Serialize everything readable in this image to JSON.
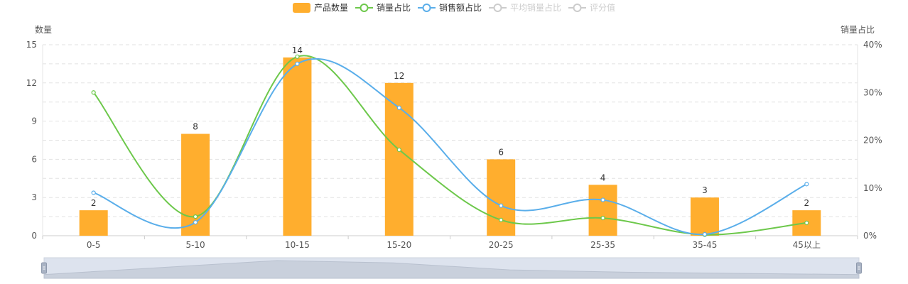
{
  "chart_data": {
    "type": "bar",
    "categories": [
      "0-5",
      "5-10",
      "10-15",
      "15-20",
      "20-25",
      "25-35",
      "35-45",
      "45以上"
    ],
    "y_left": {
      "label": "数量",
      "ylim": [
        0,
        15
      ],
      "ticks": [
        0,
        3,
        6,
        9,
        12,
        15
      ]
    },
    "y_right": {
      "label": "销量占比",
      "ylim": [
        0,
        40
      ],
      "ticks": [
        "0%",
        "10%",
        "20%",
        "30%",
        "40%"
      ]
    },
    "grid": "dashed horizontal",
    "legend": {
      "placement": "top-center",
      "items": [
        {
          "name": "产品数量",
          "style": "bar",
          "color": "#FFAE2E",
          "active": true
        },
        {
          "name": "销量占比",
          "style": "line",
          "color": "#6DC84B",
          "active": true
        },
        {
          "name": "销售额占比",
          "style": "line",
          "color": "#5AAEEA",
          "active": true
        },
        {
          "name": "平均销量占比",
          "style": "line",
          "color": "#CCCCCC",
          "active": false
        },
        {
          "name": "评分值",
          "style": "line",
          "color": "#CCCCCC",
          "active": false
        }
      ]
    },
    "series": [
      {
        "name": "产品数量",
        "type": "bar",
        "axis": "left",
        "color": "#FFAE2E",
        "values": [
          2,
          8,
          14,
          12,
          6,
          4,
          3,
          2
        ]
      },
      {
        "name": "销量占比",
        "type": "line",
        "axis": "right",
        "color": "#6DC84B",
        "values": [
          30,
          4,
          37.5,
          18,
          3.3,
          3.7,
          0.2,
          2.7
        ]
      },
      {
        "name": "销售额占比",
        "type": "line",
        "axis": "right",
        "color": "#5AAEEA",
        "values": [
          9,
          2.8,
          36,
          26.8,
          6.3,
          7.5,
          0.3,
          10.8
        ]
      }
    ]
  }
}
